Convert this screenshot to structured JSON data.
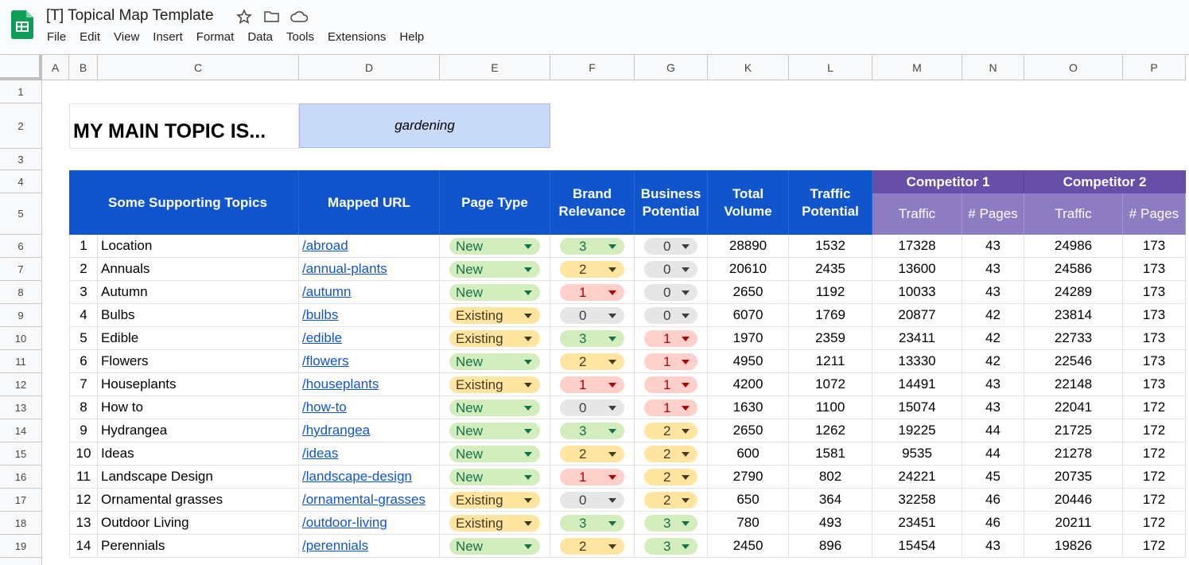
{
  "app": {
    "title": "[T] Topical Map Template",
    "menu": [
      "File",
      "Edit",
      "View",
      "Insert",
      "Format",
      "Data",
      "Tools",
      "Extensions",
      "Help"
    ]
  },
  "columns": [
    "A",
    "B",
    "C",
    "D",
    "E",
    "F",
    "G",
    "K",
    "L",
    "M",
    "N",
    "O",
    "P"
  ],
  "row_numbers": [
    1,
    2,
    3,
    4,
    5,
    6,
    7,
    8,
    9,
    10,
    11,
    12,
    13,
    14,
    15,
    16,
    17,
    18,
    19
  ],
  "main_topic": {
    "label": "MY MAIN TOPIC IS...",
    "value": "gardening"
  },
  "header": {
    "columns": [
      "Some Supporting Topics",
      "Mapped URL",
      "Page Type",
      "Brand Relevance",
      "Business Potential",
      "Total Volume",
      "Traffic Potential"
    ],
    "competitors": [
      {
        "name": "Competitor 1",
        "columns": [
          "Traffic",
          "# Pages"
        ]
      },
      {
        "name": "Competitor 2",
        "columns": [
          "Traffic",
          "# Pages"
        ]
      }
    ]
  },
  "page_type_colors": {
    "New": {
      "bg": "#d4edbc",
      "fg": "#11734b"
    },
    "Existing": {
      "bg": "#ffe5a0",
      "fg": "#473821"
    }
  },
  "rating_colors": [
    {
      "bg": "#e6e6e6",
      "fg": "#3d3d3d"
    },
    {
      "bg": "#ffcfc9",
      "fg": "#b10202"
    },
    {
      "bg": "#ffe5a0",
      "fg": "#473821"
    },
    {
      "bg": "#d4edbc",
      "fg": "#11734b"
    }
  ],
  "rows": [
    [
      1,
      "Location",
      "/abroad",
      "New",
      3,
      0,
      28890,
      1532,
      17328,
      43,
      24986,
      173
    ],
    [
      2,
      "Annuals",
      "/annual-plants",
      "New",
      2,
      0,
      20610,
      2435,
      13600,
      43,
      24586,
      173
    ],
    [
      3,
      "Autumn",
      "/autumn",
      "New",
      1,
      0,
      2650,
      1192,
      10033,
      43,
      24289,
      173
    ],
    [
      4,
      "Bulbs",
      "/bulbs",
      "Existing",
      0,
      0,
      6070,
      1769,
      20877,
      42,
      23814,
      173
    ],
    [
      5,
      "Edible",
      "/edible",
      "Existing",
      3,
      1,
      1970,
      2359,
      23411,
      42,
      22733,
      173
    ],
    [
      6,
      "Flowers",
      "/flowers",
      "New",
      2,
      1,
      4950,
      1211,
      13330,
      42,
      22546,
      173
    ],
    [
      7,
      "Houseplants",
      "/houseplants",
      "Existing",
      1,
      1,
      4200,
      1072,
      14491,
      43,
      22148,
      173
    ],
    [
      8,
      "How to",
      "/how-to",
      "New",
      0,
      1,
      1630,
      1100,
      15074,
      43,
      22041,
      172
    ],
    [
      9,
      "Hydrangea",
      "/hydrangea",
      "New",
      3,
      2,
      2650,
      1262,
      19225,
      44,
      21725,
      172
    ],
    [
      10,
      "Ideas",
      "/ideas",
      "New",
      2,
      2,
      600,
      1581,
      9535,
      44,
      21278,
      172
    ],
    [
      11,
      "Landscape Design",
      "/landscape-design",
      "New",
      1,
      2,
      2790,
      802,
      24221,
      45,
      20735,
      172
    ],
    [
      12,
      "Ornamental grasses",
      "/ornamental-grasses",
      "Existing",
      0,
      2,
      650,
      364,
      32258,
      46,
      20446,
      172
    ],
    [
      13,
      "Outdoor Living",
      "/outdoor-living",
      "Existing",
      3,
      3,
      780,
      493,
      23451,
      46,
      20211,
      172
    ],
    [
      14,
      "Perennials",
      "/perennials",
      "New",
      2,
      3,
      2450,
      896,
      15454,
      43,
      19826,
      172
    ]
  ]
}
